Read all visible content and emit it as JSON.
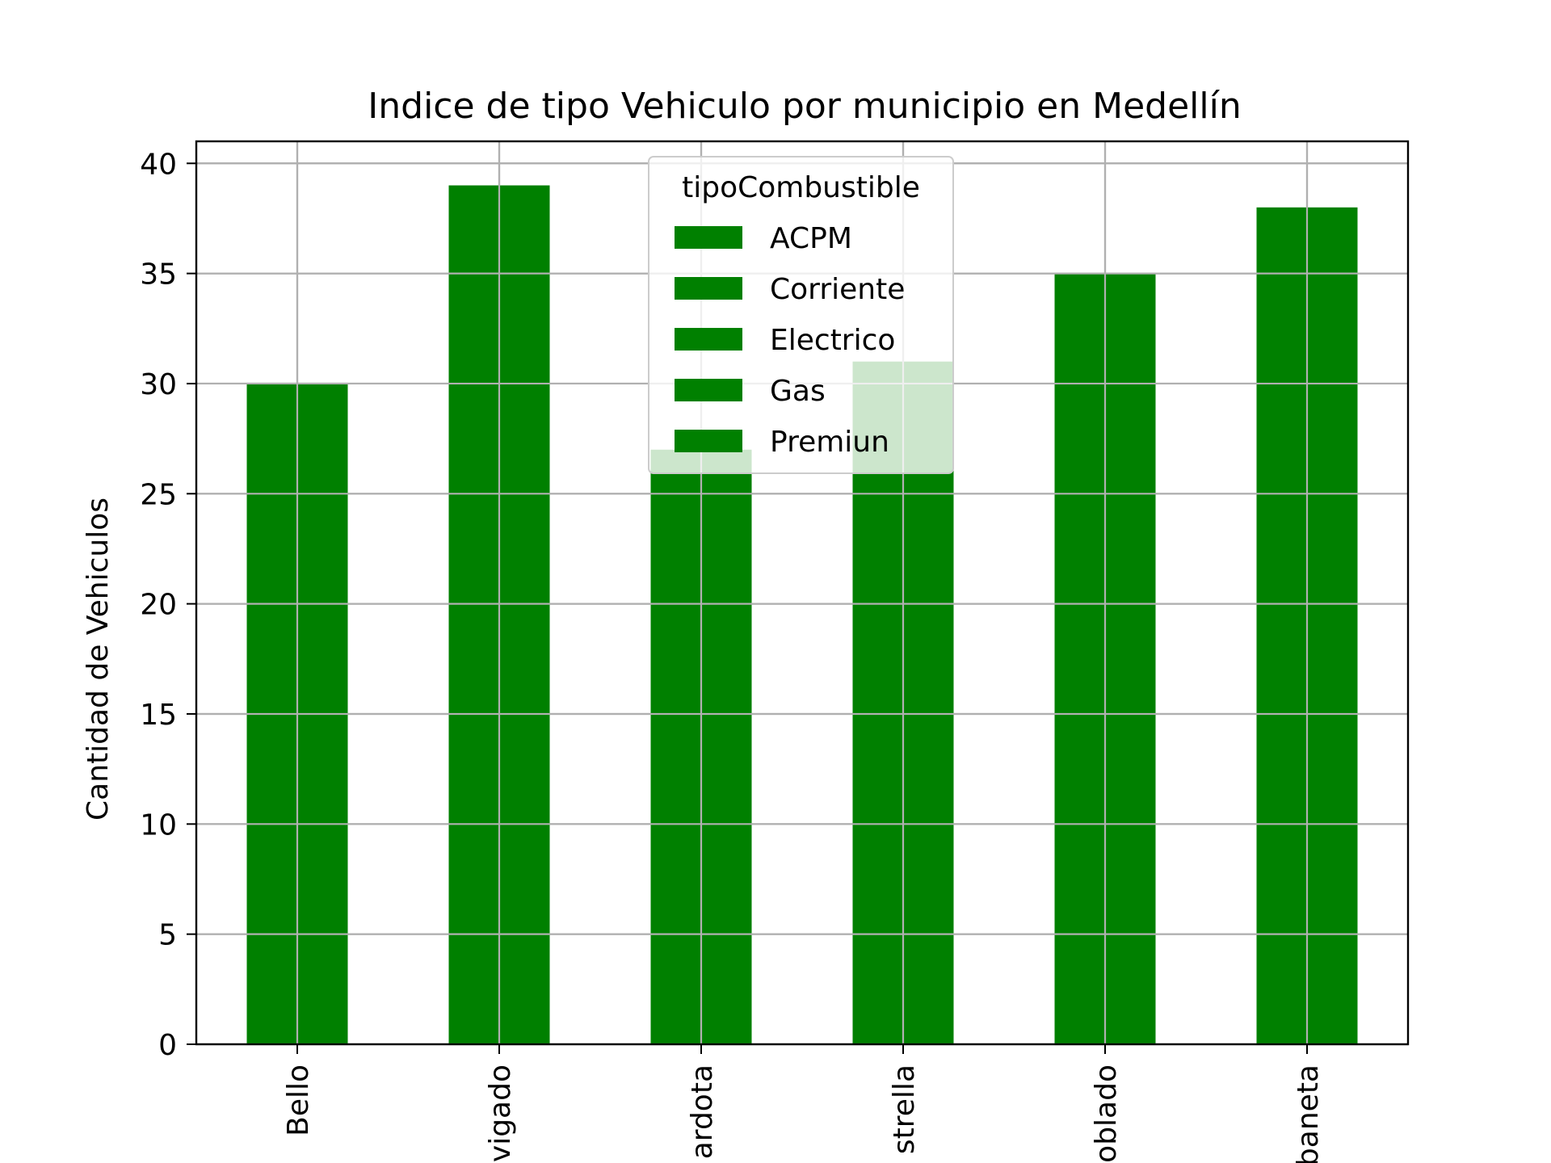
{
  "chart_data": {
    "type": "bar",
    "title": "Indice de tipo Vehiculo por municipio en Medellín",
    "xlabel": "",
    "ylabel": "Cantidad de Vehiculos",
    "categories": [
      "Bello",
      "Envigado",
      "Girardota",
      "La Estrella",
      "El Poblado",
      "Sabaneta"
    ],
    "category_labels_visible": [
      "Bello",
      "vigado",
      "ardota",
      "strella",
      "oblado",
      "baneta"
    ],
    "ylim": [
      0,
      41
    ],
    "yticks": [
      0,
      5,
      10,
      15,
      20,
      25,
      30,
      35,
      40
    ],
    "ytick_labels": [
      "0",
      "5",
      "10",
      "15",
      "20",
      "25",
      "30",
      "35",
      "40"
    ],
    "grid": true,
    "series": [
      {
        "name": "ACPM",
        "values": [
          30,
          39,
          27,
          31,
          35,
          38
        ]
      }
    ],
    "legend": {
      "title": "tipoCombustible",
      "placement": "upper center",
      "entries": [
        "ACPM",
        "Corriente",
        "Electrico",
        "Gas",
        "Premiun"
      ]
    },
    "colors": {
      "bar": "#008000",
      "grid": "#b0b0b0",
      "axes": "#000000"
    }
  }
}
